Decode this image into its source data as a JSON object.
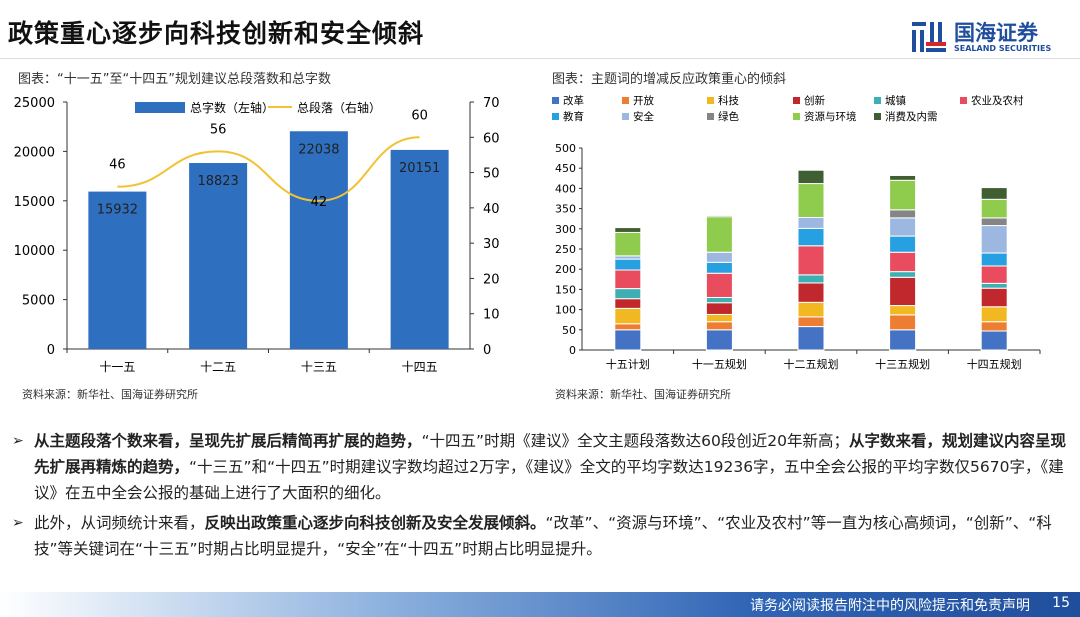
{
  "header": {
    "title": "政策重心逐步向科技创新和安全倾斜",
    "logo_cn": "国海证券",
    "logo_en": "SEALAND SECURITIES"
  },
  "left_chart": {
    "caption": "图表：“十一五”至“十四五”规划建议总段落数和总字数",
    "source": "资料来源：新华社、国海证券研究所"
  },
  "right_chart": {
    "caption": "图表：主题词的增减反应政策重心的倾斜",
    "source": "资料来源：新华社、国海证券研究所"
  },
  "chart_data": [
    {
      "type": "bar+line",
      "categories": [
        "十一五",
        "十二五",
        "十三五",
        "十四五"
      ],
      "series": [
        {
          "name": "总字数（左轴）",
          "type": "bar",
          "axis": "left",
          "values": [
            15932,
            18823,
            22038,
            20151
          ],
          "color": "#2e6fbf"
        },
        {
          "name": "总段落（右轴）",
          "type": "line",
          "axis": "right",
          "values": [
            46,
            56,
            42,
            60
          ],
          "color": "#f2c233"
        }
      ],
      "ylim_left": [
        0,
        25000
      ],
      "yticks_left": [
        0,
        5000,
        10000,
        15000,
        20000,
        25000
      ],
      "ylim_right": [
        0,
        70
      ],
      "yticks_right": [
        0,
        10,
        20,
        30,
        40,
        50,
        60,
        70
      ],
      "legend": "top",
      "grid": false
    },
    {
      "type": "stacked-bar",
      "categories": [
        "十五计划",
        "十一五规划",
        "十二五规划",
        "十三五规划",
        "十四五规划"
      ],
      "ylim": [
        0,
        500
      ],
      "yticks": [
        0,
        50,
        100,
        150,
        200,
        250,
        300,
        350,
        400,
        450,
        500
      ],
      "legend": "top",
      "grid": false,
      "series": [
        {
          "name": "改革",
          "color": "#4472c4",
          "values": [
            50,
            50,
            58,
            50,
            47
          ]
        },
        {
          "name": "开放",
          "color": "#ed7d31",
          "values": [
            15,
            20,
            24,
            37,
            23
          ]
        },
        {
          "name": "科技",
          "color": "#f2b822",
          "values": [
            38,
            18,
            36,
            23,
            37
          ]
        },
        {
          "name": "创新",
          "color": "#c0282d",
          "values": [
            24,
            29,
            48,
            70,
            46
          ]
        },
        {
          "name": "城镇",
          "color": "#3eb0b4",
          "values": [
            25,
            13,
            20,
            14,
            12
          ]
        },
        {
          "name": "农业及农村",
          "color": "#e84c5e",
          "values": [
            46,
            60,
            72,
            48,
            43
          ]
        },
        {
          "name": "教育",
          "color": "#26a0e0",
          "values": [
            27,
            27,
            43,
            40,
            32
          ]
        },
        {
          "name": "安全",
          "color": "#9db8e0",
          "values": [
            8,
            25,
            27,
            45,
            68
          ]
        },
        {
          "name": "绿色",
          "color": "#858585",
          "values": [
            0,
            0,
            0,
            20,
            19
          ]
        },
        {
          "name": "资源与环境",
          "color": "#8fcc4e",
          "values": [
            58,
            88,
            84,
            73,
            46
          ]
        },
        {
          "name": "消费及内需",
          "color": "#3f5e32",
          "values": [
            12,
            3,
            33,
            12,
            29
          ]
        }
      ]
    }
  ],
  "bullets": [
    [
      {
        "t": "从主题段落个数来看，呈现先扩展后精简再扩展的趋势，",
        "b": true
      },
      {
        "t": "“十四五”时期《建议》全文主题段落数达60段创近20年新高；",
        "b": false
      },
      {
        "t": "从字数来看，规划建议内容呈现先扩展再精炼的趋势，",
        "b": true
      },
      {
        "t": "“十三五”和“十四五”时期建议字数均超过2万字，《建议》全文的平均字数达19236字，五中全会公报的平均字数仅5670字，《建议》在五中全会公报的基础上进行了大面积的细化。",
        "b": false
      }
    ],
    [
      {
        "t": "此外，从词频统计来看，",
        "b": false
      },
      {
        "t": "反映出政策重心逐步向科技创新及安全发展倾斜。",
        "b": true
      },
      {
        "t": "“改革”、“资源与环境”、“农业及农村”等一直为核心高频词，“创新”、“科技”等关键词在“十三五”时期占比明显提升，“安全”在“十四五”时期占比明显提升。",
        "b": false
      }
    ]
  ],
  "footer": {
    "disclaimer": "请务必阅读报告附注中的风险提示和免责声明",
    "page": "15"
  }
}
